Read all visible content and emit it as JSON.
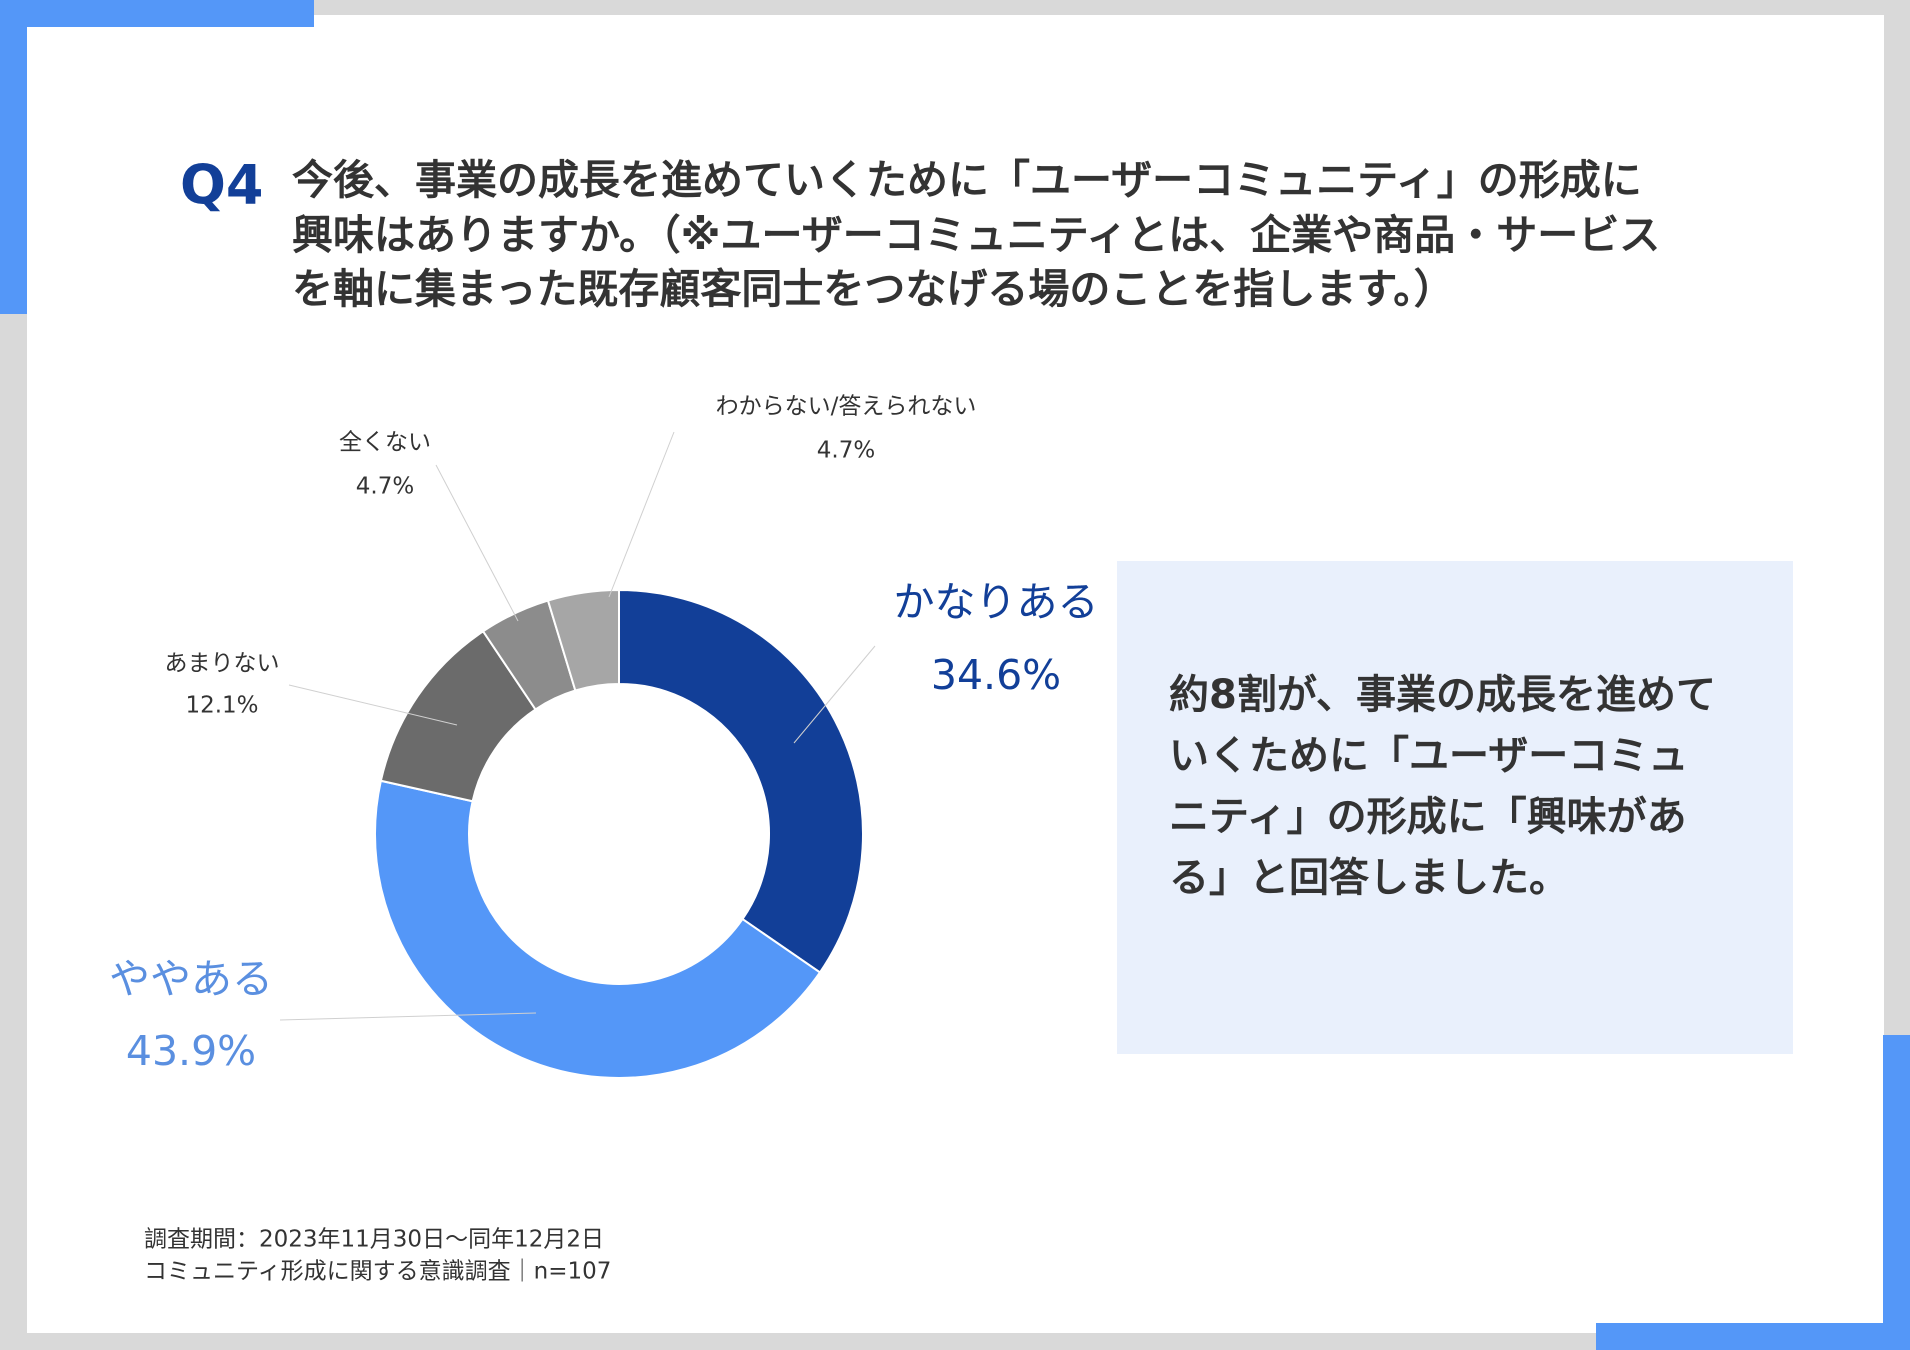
{
  "header": {
    "number": "Q4",
    "question_lines": [
      "今後、事業の成長を進めていくために「ユーザーコミュニティ」の形成に",
      "興味はありますか。（※ユーザーコミュニティとは、企業や商品・サービス",
      "を軸に集まった既存顧客同士をつなげる場のことを指します。）"
    ]
  },
  "chart_data": {
    "type": "donut",
    "categories": [
      "かなりある",
      "ややある",
      "あまりない",
      "全くない",
      "わからない/答えられない"
    ],
    "values": [
      34.6,
      43.9,
      12.1,
      4.7,
      4.7
    ],
    "value_labels": [
      "34.6%",
      "43.9%",
      "12.1%",
      "4.7%",
      "4.7%"
    ],
    "colors": [
      "#123f98",
      "#5497f8",
      "#6b6b6b",
      "#8c8c8c",
      "#a6a6a6"
    ]
  },
  "callout": {
    "lines": [
      "約8割が、事業の成長を進めて",
      "いくために「ユーザーコミュ",
      "ニティ」の形成に「興味があ",
      "る」と回答しました。"
    ]
  },
  "footnote": {
    "lines": [
      "調査期間：2023年11月30日〜同年12月2日",
      "コミュニティ形成に関する意識調査｜n=107"
    ]
  }
}
